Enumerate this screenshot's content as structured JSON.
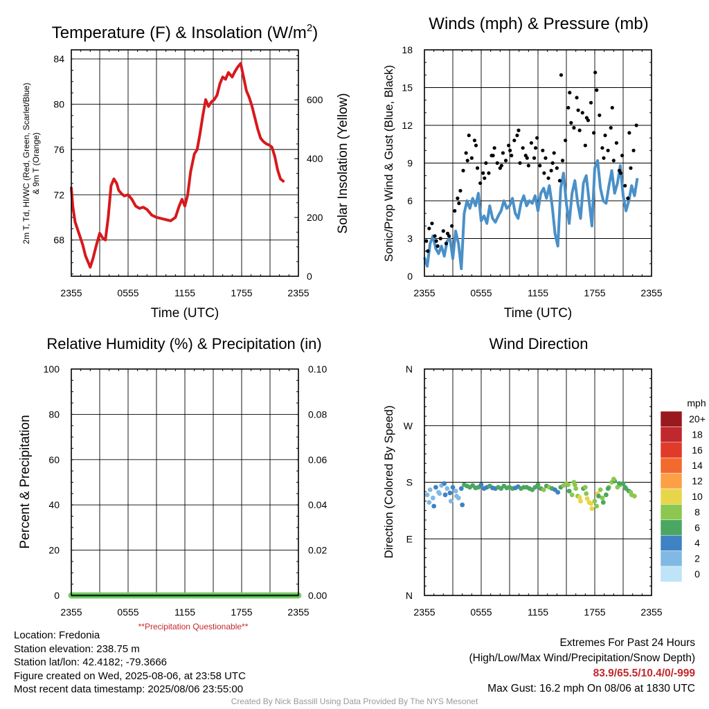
{
  "colors": {
    "temp_line": "#d7191c",
    "wind_line": "#4a90c8",
    "gust_dots": "#000000",
    "precip_line": "#3dab3d",
    "precip_edge": "#7acb6b",
    "note_red": "#c0282d"
  },
  "chart_data": [
    {
      "id": "temperature",
      "type": "line",
      "title": "Temperature (F) & Insolation (W/m²)",
      "xlabel": "Time (UTC)",
      "ylabel_left": [
        "2m T, Td, HI/WC (Red, Green, Scarlet/Blue)",
        "& 9m T (Orange)"
      ],
      "ylabel_right": "Solar Insolation (Yellow)",
      "x_tick_labels": [
        "2355",
        "0555",
        "1155",
        "1755",
        "2355"
      ],
      "x_range_hours": [
        0,
        24
      ],
      "ylim": [
        64.8,
        84.8
      ],
      "yticks": [
        68,
        72,
        76,
        80,
        84
      ],
      "y2lim": [
        0,
        770
      ],
      "y2ticks": [
        0,
        200,
        400,
        600
      ],
      "grid": true,
      "series": [
        {
          "x": [
            0.0,
            0.15,
            0.4,
            0.8,
            1.2,
            1.5,
            1.8,
            2.0,
            2.3,
            2.6,
            2.8,
            3.0,
            3.3,
            3.6,
            3.9,
            4.2,
            4.5,
            4.8,
            5.0,
            5.3,
            5.6,
            6.0,
            6.4,
            6.8,
            7.2,
            7.6,
            8.0,
            8.5,
            9.0,
            9.5,
            10.0,
            10.5,
            11.0,
            11.4,
            11.7,
            12.0,
            12.3,
            12.6,
            13.0,
            13.3,
            13.6,
            13.9,
            14.2,
            14.5,
            14.8,
            15.1,
            15.4,
            15.7,
            16.0,
            16.3,
            16.6,
            17.0,
            17.3,
            17.6,
            17.9,
            18.2,
            18.5,
            18.8,
            19.1,
            19.4,
            19.7,
            20.0,
            20.3,
            20.6,
            20.9,
            21.2,
            21.5,
            21.8,
            22.1,
            22.4
          ],
          "y": [
            72.6,
            71.0,
            69.6,
            68.6,
            67.6,
            66.6,
            66.0,
            65.6,
            66.4,
            67.4,
            68.0,
            68.6,
            68.2,
            68.0,
            70.0,
            72.8,
            73.4,
            73.0,
            72.4,
            72.1,
            71.9,
            72.0,
            71.6,
            71.0,
            70.8,
            70.9,
            70.7,
            70.2,
            70.0,
            69.9,
            69.8,
            69.7,
            70.0,
            71.0,
            71.6,
            71.0,
            72.0,
            74.0,
            75.6,
            76.0,
            77.4,
            79.0,
            80.4,
            79.8,
            80.2,
            80.4,
            80.8,
            81.8,
            82.4,
            82.2,
            82.8,
            82.4,
            82.9,
            83.3,
            83.6,
            82.4,
            81.2,
            80.6,
            79.8,
            78.8,
            77.8,
            77.0,
            76.7,
            76.5,
            76.4,
            76.2,
            75.4,
            74.2,
            73.4,
            73.2
          ]
        }
      ]
    },
    {
      "id": "winds",
      "type": "line",
      "title": "Winds (mph) & Pressure (mb)",
      "xlabel": "Time (UTC)",
      "ylabel": "Sonic/Prop Wind & Gust (Blue, Black)",
      "x_tick_labels": [
        "2355",
        "0555",
        "1155",
        "1755",
        "2355"
      ],
      "x_range_hours": [
        0,
        24
      ],
      "ylim": [
        0,
        18
      ],
      "yticks": [
        0,
        3,
        6,
        9,
        12,
        15,
        18
      ],
      "grid": true,
      "series": [
        {
          "x": [
            0.0,
            0.3,
            0.6,
            0.9,
            1.2,
            1.5,
            1.8,
            2.1,
            2.4,
            2.7,
            3.0,
            3.3,
            3.6,
            3.9,
            4.2,
            4.5,
            4.8,
            5.1,
            5.4,
            5.7,
            6.0,
            6.3,
            6.6,
            6.9,
            7.2,
            7.5,
            7.8,
            8.1,
            8.4,
            8.7,
            9.0,
            9.3,
            9.6,
            9.9,
            10.2,
            10.5,
            10.8,
            11.1,
            11.4,
            11.7,
            12.0,
            12.3,
            12.6,
            12.9,
            13.2,
            13.5,
            13.8,
            14.1,
            14.4,
            14.7,
            15.0,
            15.3,
            15.6,
            15.9,
            16.2,
            16.5,
            16.8,
            17.1,
            17.4,
            17.7,
            18.0,
            18.3,
            18.6,
            18.9,
            19.2,
            19.5,
            19.8,
            20.1,
            20.4,
            20.7,
            21.0,
            21.3,
            21.6,
            21.9,
            22.2,
            22.5
          ],
          "y": [
            1.5,
            0.8,
            2.6,
            3.2,
            2.2,
            1.8,
            2.4,
            1.6,
            2.8,
            3.0,
            1.4,
            3.6,
            2.6,
            0.6,
            5.0,
            6.0,
            5.4,
            6.2,
            5.6,
            6.6,
            4.4,
            4.8,
            4.2,
            5.6,
            4.6,
            4.3,
            4.8,
            5.2,
            6.0,
            5.4,
            5.6,
            6.2,
            5.0,
            4.6,
            5.8,
            6.4,
            5.6,
            6.0,
            5.8,
            6.4,
            5.2,
            6.6,
            7.0,
            6.2,
            7.2,
            5.6,
            3.4,
            2.4,
            7.0,
            8.2,
            5.8,
            4.2,
            6.6,
            7.6,
            5.8,
            4.6,
            7.4,
            8.0,
            6.0,
            4.0,
            8.6,
            9.2,
            7.0,
            6.0,
            5.8,
            7.2,
            8.4,
            6.6,
            7.4,
            8.8,
            6.4,
            5.2,
            6.0,
            7.2,
            6.4,
            7.8
          ]
        },
        {
          "x": [
            0.2,
            0.5,
            0.8,
            1.1,
            1.4,
            1.7,
            2.0,
            2.3,
            2.6,
            2.9,
            3.2,
            3.5,
            3.8,
            4.1,
            4.4,
            4.7,
            5.0,
            5.3,
            5.6,
            5.9,
            6.2,
            6.5,
            6.8,
            7.1,
            7.4,
            7.7,
            8.0,
            8.3,
            8.6,
            8.9,
            9.2,
            9.5,
            9.8,
            10.1,
            10.4,
            10.7,
            11.0,
            11.3,
            11.6,
            11.9,
            12.2,
            12.5,
            12.8,
            13.1,
            13.4,
            13.7,
            14.0,
            14.3,
            14.6,
            14.9,
            15.2,
            15.5,
            15.8,
            16.1,
            16.4,
            16.7,
            17.0,
            17.3,
            17.6,
            17.9,
            18.2,
            18.5,
            18.8,
            19.1,
            19.4,
            19.7,
            20.0,
            20.3,
            20.6,
            20.9,
            21.2,
            21.5,
            21.8,
            22.1,
            22.4,
            0.35,
            1.25,
            2.45,
            3.65,
            4.55,
            5.45,
            6.35,
            7.25,
            8.15,
            9.05,
            9.95,
            10.85,
            11.75,
            12.65,
            13.55,
            14.45,
            15.35,
            16.25,
            17.15,
            18.05,
            18.95,
            19.85,
            20.75,
            21.65
          ],
          "y": [
            2.8,
            3.8,
            4.2,
            3.2,
            2.4,
            3.0,
            3.6,
            2.6,
            3.2,
            4.0,
            5.2,
            6.2,
            6.8,
            8.4,
            9.8,
            11.2,
            9.4,
            10.8,
            8.6,
            7.4,
            8.2,
            9.0,
            8.2,
            9.6,
            10.2,
            9.0,
            8.6,
            9.8,
            9.2,
            10.4,
            9.6,
            10.8,
            11.2,
            9.0,
            10.2,
            9.6,
            8.8,
            10.6,
            9.4,
            11.0,
            8.8,
            10.0,
            9.4,
            7.8,
            8.4,
            9.8,
            8.6,
            7.6,
            9.2,
            10.8,
            13.4,
            12.2,
            11.8,
            14.2,
            11.6,
            13.0,
            10.4,
            12.4,
            13.8,
            11.4,
            14.8,
            12.8,
            10.2,
            11.2,
            10.0,
            11.8,
            9.2,
            10.6,
            8.4,
            9.6,
            7.2,
            6.2,
            8.6,
            10.0,
            12.0,
            2.0,
            2.8,
            3.4,
            5.8,
            9.2,
            10.4,
            7.8,
            9.6,
            8.8,
            10.0,
            11.6,
            9.4,
            10.2,
            8.2,
            9.0,
            16.0,
            14.6,
            13.2,
            12.6,
            16.2,
            9.4,
            13.4,
            8.2,
            11.4
          ]
        }
      ]
    },
    {
      "id": "humidity",
      "type": "line",
      "title": "Relative Humidity (%) & Precipitation (in)",
      "ylabel": "Percent & Precipitation",
      "x_tick_labels": [
        "2355",
        "0555",
        "1155",
        "1755",
        "2355"
      ],
      "x_range_hours": [
        0,
        24
      ],
      "ylim": [
        0,
        100
      ],
      "yticks": [
        0,
        20,
        40,
        60,
        80,
        100
      ],
      "y2lim": [
        0,
        0.1
      ],
      "y2ticks": [
        "0.00",
        "0.02",
        "0.04",
        "0.06",
        "0.08",
        "0.10"
      ],
      "grid": true,
      "note": "**Precipitation Questionable**",
      "series": [
        {
          "x": [
            0,
            24
          ],
          "y": [
            0,
            0
          ]
        }
      ]
    },
    {
      "id": "direction",
      "type": "scatter",
      "title": "Wind Direction",
      "ylabel": "Direction (Colored By Speed)",
      "x_tick_labels": [
        "2355",
        "0555",
        "1155",
        "1755",
        "2355"
      ],
      "x_range_hours": [
        0,
        24
      ],
      "y_tick_labels": [
        "N",
        "E",
        "S",
        "W",
        "N"
      ],
      "ylim_deg": [
        0,
        360
      ],
      "grid": true,
      "colorbar": {
        "title": "mph",
        "labels": [
          "20+",
          "18",
          "16",
          "14",
          "12",
          "10",
          "8",
          "6",
          "4",
          "2",
          "0"
        ],
        "colors": [
          "#981a1e",
          "#c0282d",
          "#e03b2a",
          "#f26a2e",
          "#fca046",
          "#e8d64a",
          "#8cc74f",
          "#4aa762",
          "#3f82c3",
          "#80b9e3",
          "#bfe3f7"
        ]
      },
      "series": [
        {
          "x": [
            0.3,
            0.6,
            0.9,
            1.2,
            1.5,
            1.8,
            2.1,
            2.4,
            2.7,
            3.0,
            3.3,
            3.6,
            3.9,
            4.2,
            4.5,
            4.8,
            5.1,
            5.4,
            5.7,
            6.0,
            6.3,
            6.6,
            6.9,
            7.2,
            7.5,
            7.8,
            8.1,
            8.4,
            8.7,
            9.0,
            9.3,
            9.6,
            9.9,
            10.2,
            10.5,
            10.8,
            11.1,
            11.4,
            11.7,
            12.0,
            12.3,
            12.6,
            12.9,
            13.2,
            13.5,
            13.8,
            14.1,
            14.4,
            14.7,
            15.0,
            15.3,
            15.6,
            15.9,
            16.2,
            16.5,
            16.8,
            17.1,
            17.4,
            17.7,
            18.0,
            18.3,
            18.6,
            18.9,
            19.2,
            19.5,
            19.8,
            20.1,
            20.4,
            20.7,
            21.0,
            21.3,
            21.6,
            21.9,
            22.2,
            0.5,
            1.0,
            1.6,
            2.2,
            2.8,
            3.4,
            4.0,
            15.2,
            15.8,
            16.4,
            17.0,
            17.6,
            18.2,
            18.8,
            19.4,
            20.0,
            20.6,
            21.2,
            21.8,
            16.0,
            17.2,
            18.4
          ],
          "deg": [
            160,
            168,
            155,
            172,
            164,
            175,
            178,
            170,
            163,
            172,
            166,
            155,
            170,
            176,
            174,
            172,
            175,
            171,
            172,
            176,
            170,
            172,
            174,
            171,
            170,
            172,
            170,
            174,
            171,
            172,
            170,
            171,
            173,
            170,
            172,
            172,
            170,
            168,
            172,
            176,
            170,
            168,
            174,
            172,
            170,
            168,
            164,
            172,
            175,
            178,
            166,
            160,
            176,
            158,
            150,
            170,
            162,
            148,
            138,
            150,
            162,
            168,
            148,
            160,
            172,
            180,
            182,
            172,
            176,
            178,
            170,
            166,
            160,
            158,
            148,
            142,
            162,
            160,
            150,
            158,
            144,
            176,
            180,
            156,
            172,
            146,
            142,
            155,
            170,
            185,
            178,
            172,
            164,
            170,
            154,
            158
          ],
          "speed": [
            2,
            1,
            2,
            3,
            2,
            2,
            3,
            2,
            3,
            3,
            2,
            1,
            4,
            5,
            6,
            6,
            6,
            5,
            6,
            4,
            4,
            4,
            5,
            4,
            4,
            5,
            5,
            6,
            5,
            5,
            6,
            4,
            4,
            5,
            6,
            5,
            6,
            5,
            6,
            5,
            6,
            7,
            6,
            7,
            6,
            4,
            3,
            6,
            7,
            8,
            5,
            8,
            7,
            8,
            9,
            6,
            8,
            9,
            10,
            8,
            9,
            7,
            6,
            6,
            7,
            8,
            6,
            7,
            8,
            6,
            5,
            6,
            7,
            7,
            2,
            3,
            2,
            3,
            2,
            1,
            4,
            7,
            8,
            9,
            8,
            10,
            7,
            7,
            6,
            8,
            6,
            6,
            7,
            8,
            9,
            6
          ]
        }
      ]
    }
  ],
  "info": {
    "location": "Location: Fredonia",
    "elevation": "Station elevation: 238.75 m",
    "latlon": "Station lat/lon: 42.4182; -79.3666",
    "created": "Figure created on Wed, 2025-08-06, at 23:58 UTC",
    "recent": "Most recent data timestamp: 2025/08/06 23:55:00"
  },
  "extremes": {
    "title": "Extremes For Past 24 Hours",
    "subtitle": "(High/Low/Max Wind/Precipitation/Snow Depth)",
    "values": "83.9/65.5/10.4/0/-999",
    "gust": "Max Gust: 16.2 mph On 08/06 at 1830 UTC"
  },
  "credit": "Created By Nick Bassill Using Data Provided By The NYS Mesonet"
}
